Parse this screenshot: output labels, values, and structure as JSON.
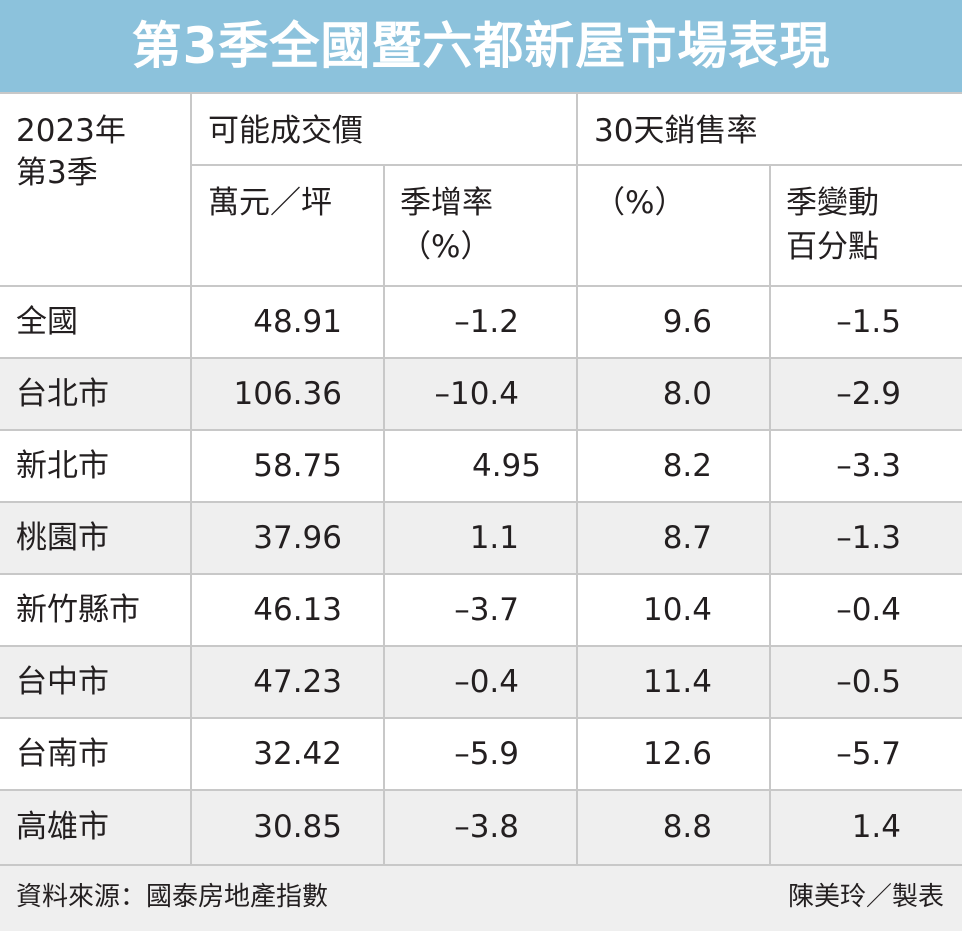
{
  "title": "第3季全國暨六都新屋市場表現",
  "header": {
    "period_line1": "2023年",
    "period_line2": "第3季",
    "group_price": "可能成交價",
    "group_sales": "30天銷售率",
    "price_unit": "萬元／坪",
    "price_change_line1": "季增率",
    "price_change_line2": "（%）",
    "sales_unit": "（%）",
    "sales_change_line1": "季變動",
    "sales_change_line2": "百分點"
  },
  "rows": [
    {
      "region": "全國",
      "price": "48.91",
      "price_qoq": "–1.2",
      "sales_rate": "9.6",
      "sales_change": "–1.5"
    },
    {
      "region": "台北市",
      "price": "106.36",
      "price_qoq": "–10.4",
      "sales_rate": "8.0",
      "sales_change": "–2.9"
    },
    {
      "region": "新北市",
      "price": "58.75",
      "price_qoq": "4.95",
      "sales_rate": "8.2",
      "sales_change": "–3.3"
    },
    {
      "region": "桃園市",
      "price": "37.96",
      "price_qoq": "1.1",
      "sales_rate": "8.7",
      "sales_change": "–1.3"
    },
    {
      "region": "新竹縣市",
      "price": "46.13",
      "price_qoq": "–3.7",
      "sales_rate": "10.4",
      "sales_change": "–0.4"
    },
    {
      "region": "台中市",
      "price": "47.23",
      "price_qoq": "–0.4",
      "sales_rate": "11.4",
      "sales_change": "–0.5"
    },
    {
      "region": "台南市",
      "price": "32.42",
      "price_qoq": "–5.9",
      "sales_rate": "12.6",
      "sales_change": "–5.7"
    },
    {
      "region": "高雄市",
      "price": "30.85",
      "price_qoq": "–3.8",
      "sales_rate": "8.8",
      "sales_change": "1.4"
    }
  ],
  "footer": {
    "source": "資料來源：國泰房地產指數",
    "author": "陳美玲／製表"
  },
  "colors": {
    "title_bg": "#8cc2dc",
    "stripe_bg": "#efefef",
    "grid": "#c8c8c8",
    "text": "#231f20"
  }
}
